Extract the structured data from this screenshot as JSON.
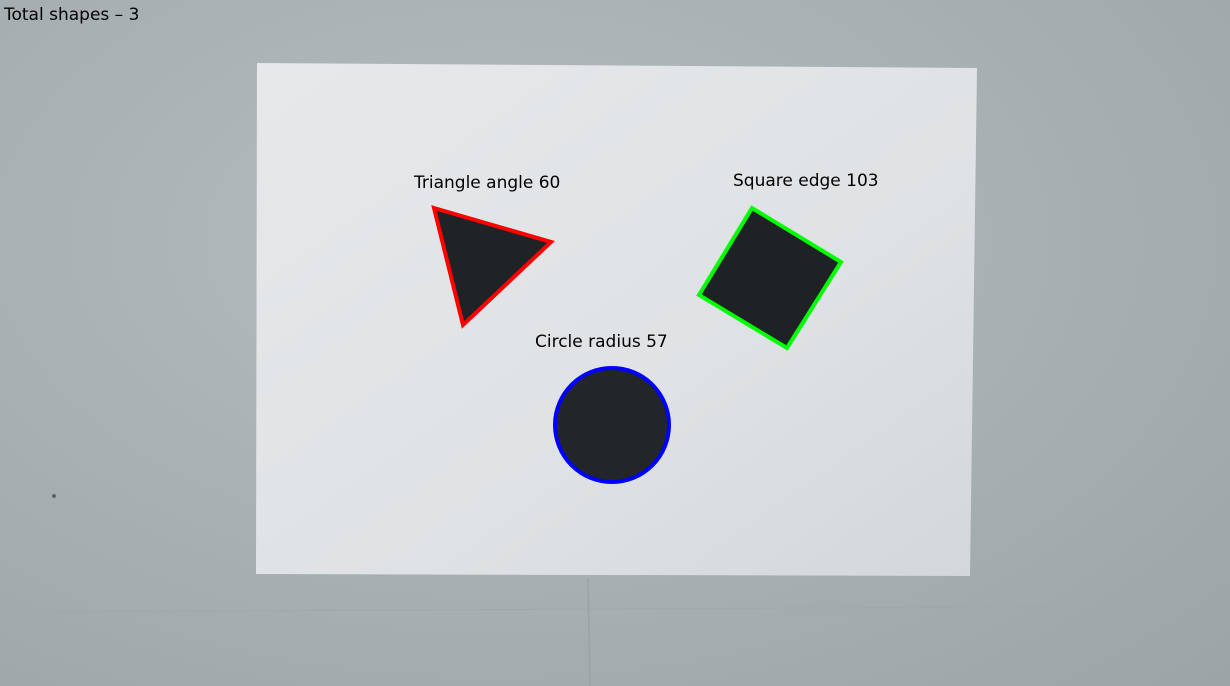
{
  "overlay": {
    "total_label": "Total shapes – 3",
    "shapes": [
      {
        "type": "triangle",
        "label": "Triangle angle 60",
        "outline_color": "#ff0000"
      },
      {
        "type": "square",
        "label": "Square edge 103",
        "outline_color": "#00ff00"
      },
      {
        "type": "circle",
        "label": "Circle radius 57",
        "outline_color": "#0000ff"
      }
    ]
  },
  "colors": {
    "wall": "#a9b1b5",
    "paper": "#e2e5e7",
    "shape_fill": "#1e2224"
  }
}
